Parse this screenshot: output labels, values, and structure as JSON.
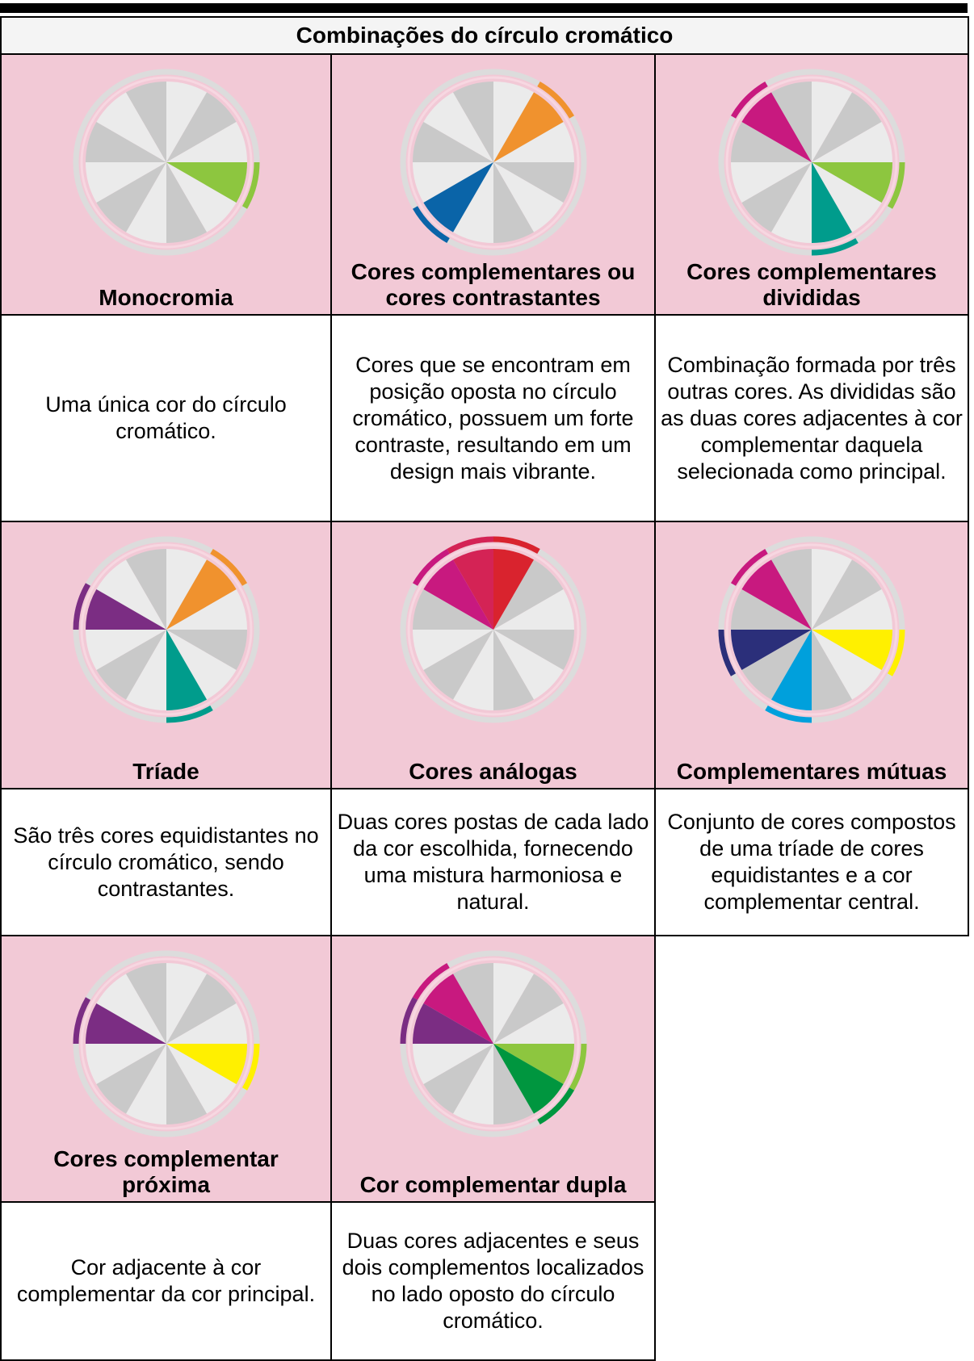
{
  "header": {
    "title": "Combinações do círculo cromático"
  },
  "items": [
    {
      "label": "Monocromia",
      "description": "Uma única cor do círculo cromático."
    },
    {
      "label": "Cores complementares ou cores contrastantes",
      "description": "Cores que se encontram em posição oposta no círculo cromático, possuem um forte contraste, resultando em um design mais vibrante."
    },
    {
      "label": "Cores complementares divididas",
      "description": "Combinação formada por três outras cores. As divididas são as duas cores adjacentes à cor complementar daquela selecionada como principal."
    },
    {
      "label": "Tríade",
      "description": "São três cores equidistantes no círculo cromático, sendo contrastantes."
    },
    {
      "label": "Cores análogas",
      "description": "Duas cores postas de cada lado da cor escolhida, fornecendo uma mistura harmoniosa e natural."
    },
    {
      "label": "Complementares mútuas",
      "description": "Conjunto de cores compostos de uma tríade de cores equidistantes e a cor complementar central."
    },
    {
      "label": "Cores complementar próxima",
      "description": "Cor adjacente à cor complementar da cor principal."
    },
    {
      "label": "Cor complementar dupla",
      "description": "Duas cores adjacentes e seus dois complementos localizados no lado oposto do círculo cromático."
    }
  ]
}
